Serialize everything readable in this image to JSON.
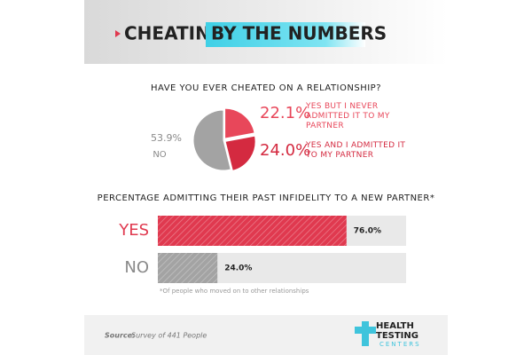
{
  "header": {
    "title_start": "CHEATING,",
    "title_highlight": "BY THE NUMBERS"
  },
  "chart_data": [
    {
      "type": "pie",
      "title": "HAVE YOU EVER CHEATED ON A RELATIONSHIP?",
      "categories": [
        "YES BUT I NEVER ADMITTED IT TO MY PARTNER",
        "YES AND I ADMITTED IT TO MY PARTNER",
        "NO"
      ],
      "values": [
        22.1,
        24.0,
        53.9
      ],
      "value_labels": [
        "22.1%",
        "24.0%",
        "53.9%"
      ],
      "colors": [
        "#e8475a",
        "#d42a40",
        "#a3a3a3"
      ]
    },
    {
      "type": "bar",
      "title": "PERCENTAGE ADMITTING THEIR PAST INFIDELITY TO A NEW PARTNER*",
      "categories": [
        "YES",
        "NO"
      ],
      "values": [
        76.0,
        24.0
      ],
      "value_labels": [
        "76.0%",
        "24.0%"
      ],
      "colors": [
        "#e0394f",
        "#a3a3a3"
      ],
      "xlim": [
        0,
        100
      ],
      "footnote": "*Of people who moved on to other relationships"
    }
  ],
  "footer": {
    "source_label": "Source:",
    "source": "Survey of 441 People",
    "logo": [
      "HEALTH",
      "TESTING",
      "CENTERS"
    ]
  }
}
